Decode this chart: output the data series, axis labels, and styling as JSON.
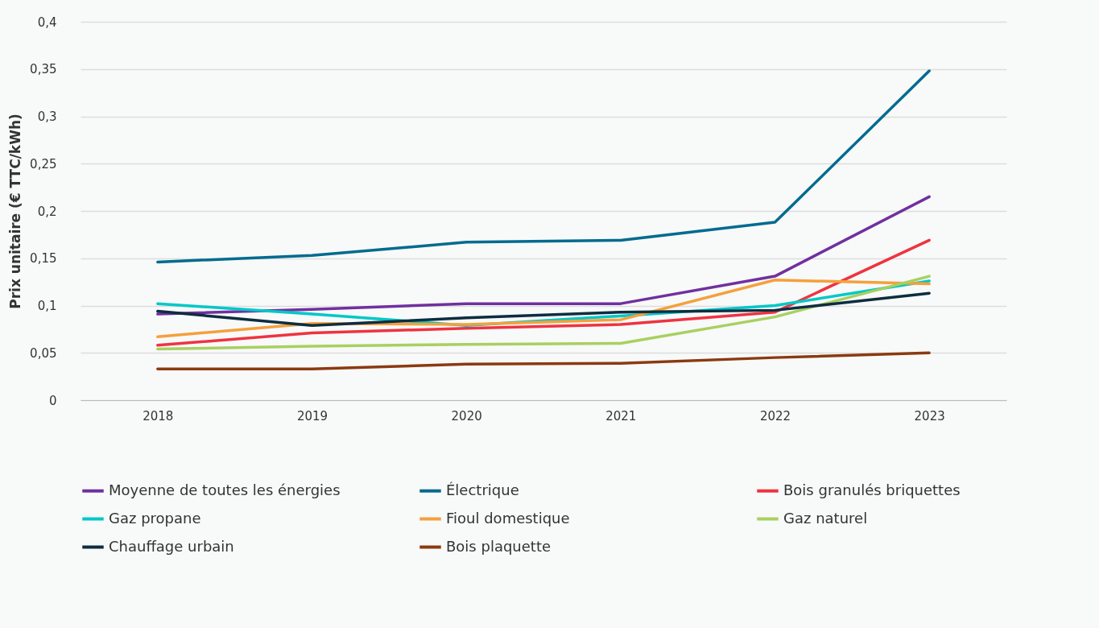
{
  "chart_data": {
    "type": "line",
    "ylabel": "Prix unitaire (€ TTC/kWh)",
    "categories": [
      "2018",
      "2019",
      "2020",
      "2021",
      "2022",
      "2023"
    ],
    "series": [
      {
        "name": "Moyenne de toutes les énergies",
        "color": "#7030a0",
        "values": [
          0.091,
          0.096,
          0.102,
          0.102,
          0.131,
          0.215
        ]
      },
      {
        "name": "Électrique",
        "color": "#006b8f",
        "values": [
          0.146,
          0.153,
          0.167,
          0.169,
          0.188,
          0.348
        ]
      },
      {
        "name": "Bois granulés briquettes",
        "color": "#ef3340",
        "values": [
          0.058,
          0.071,
          0.076,
          0.08,
          0.093,
          0.169
        ]
      },
      {
        "name": "Gaz propane",
        "color": "#00c8c8",
        "values": [
          0.102,
          0.091,
          0.079,
          0.089,
          0.1,
          0.126
        ]
      },
      {
        "name": "Fioul domestique",
        "color": "#f5a03c",
        "values": [
          0.067,
          0.081,
          0.08,
          0.085,
          0.127,
          0.123
        ]
      },
      {
        "name": "Gaz naturel",
        "color": "#a8d060",
        "values": [
          0.054,
          0.057,
          0.059,
          0.06,
          0.088,
          0.131
        ]
      },
      {
        "name": "Chauffage urbain",
        "color": "#0d2d40",
        "values": [
          0.094,
          0.079,
          0.087,
          0.093,
          0.095,
          0.113
        ]
      },
      {
        "name": "Bois plaquette",
        "color": "#8b3a10",
        "values": [
          0.033,
          0.033,
          0.038,
          0.039,
          0.045,
          0.05
        ]
      }
    ],
    "ylim": [
      0,
      0.4
    ],
    "yticks": [
      0,
      {
        "value": 0.05,
        "label": "0,05"
      },
      {
        "value": 0.1,
        "label": "0,1"
      },
      {
        "value": 0.15,
        "label": "0,15"
      },
      {
        "value": 0.2,
        "label": "0,2"
      },
      {
        "value": 0.25,
        "label": "0,25"
      },
      {
        "value": 0.3,
        "label": "0,3"
      },
      {
        "value": 0.35,
        "label": "0,35"
      },
      {
        "value": 0.4,
        "label": "0,4"
      }
    ],
    "grid": "y",
    "legend": "bottom"
  }
}
